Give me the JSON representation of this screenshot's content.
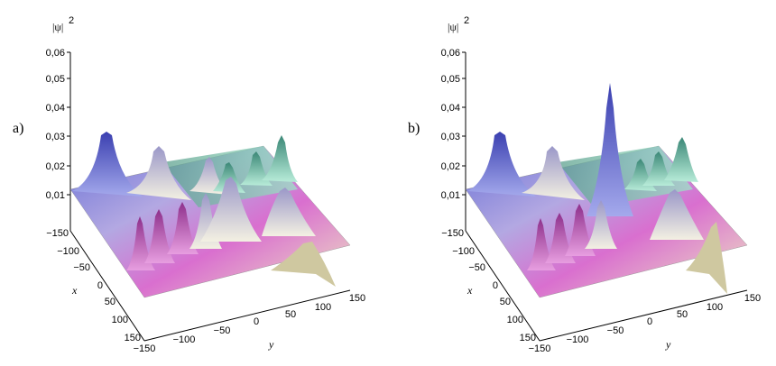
{
  "panels": [
    {
      "id": "a",
      "label": "a)",
      "z_label": "|ψ|",
      "z_exp": "2",
      "x_label": "x",
      "y_label": "y",
      "z_ticks": [
        "0,01",
        "0,02",
        "0,03",
        "0,04",
        "0,05",
        "0,06"
      ],
      "x_ticks": [
        "−150",
        "−100",
        "−50",
        "0",
        "50",
        "100",
        "150"
      ],
      "y_ticks": [
        "−150",
        "−100",
        "−50",
        "0",
        "50",
        "100",
        "150"
      ]
    },
    {
      "id": "b",
      "label": "b)",
      "z_label": "|ψ|",
      "z_exp": "2",
      "x_label": "x",
      "y_label": "y",
      "z_ticks": [
        "0,01",
        "0,02",
        "0,03",
        "0,04",
        "0,05",
        "0,06"
      ],
      "x_ticks": [
        "−150",
        "−100",
        "−50",
        "0",
        "50",
        "100",
        "150"
      ],
      "y_ticks": [
        "−150",
        "−100",
        "−50",
        "0",
        "50",
        "100",
        "150"
      ]
    }
  ],
  "colors": {
    "blue": "#6d75d8",
    "pink": "#d85ac8",
    "green": "#5a9a88",
    "cream": "#f0ecc8"
  }
}
